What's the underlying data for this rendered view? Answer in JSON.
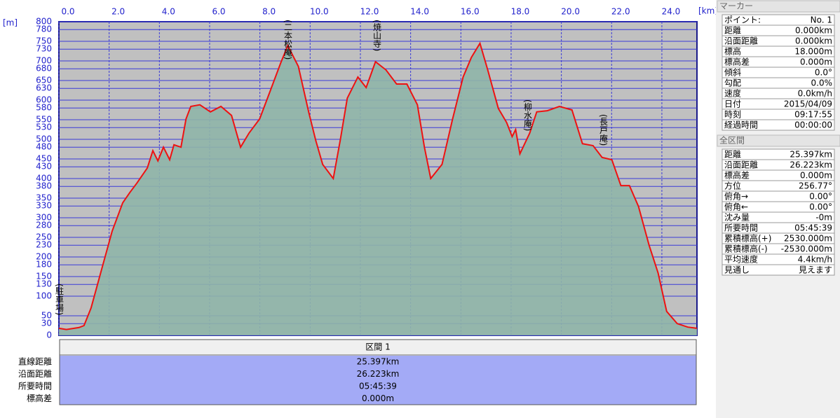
{
  "chart_data": {
    "type": "line",
    "x_label": "[km]",
    "y_label": "[m]",
    "color": "#ee1111",
    "fill": "#8fb5a8",
    "grid": true,
    "xlim": [
      0,
      25.397
    ],
    "ylim": [
      0,
      800
    ],
    "xticks": [
      {
        "value": 0,
        "label": "0.0"
      },
      {
        "value": 2,
        "label": "2.0"
      },
      {
        "value": 4,
        "label": "4.0"
      },
      {
        "value": 6,
        "label": "6.0"
      },
      {
        "value": 8,
        "label": "8.0"
      },
      {
        "value": 10,
        "label": "10.0"
      },
      {
        "value": 12,
        "label": "12.0"
      },
      {
        "value": 14,
        "label": "14.0"
      },
      {
        "value": 16,
        "label": "16.0"
      },
      {
        "value": 18,
        "label": "18.0"
      },
      {
        "value": 20,
        "label": "20.0"
      },
      {
        "value": 22,
        "label": "22.0"
      },
      {
        "value": 24,
        "label": "24.0"
      }
    ],
    "yticks": [
      0,
      30,
      50,
      100,
      130,
      150,
      180,
      200,
      230,
      250,
      280,
      300,
      330,
      350,
      380,
      400,
      430,
      450,
      480,
      500,
      530,
      550,
      580,
      600,
      630,
      650,
      680,
      700,
      730,
      750,
      780,
      800
    ],
    "annotations": [
      "(駐車場)",
      "(二本松庵)",
      "(焼山寺)",
      "(柳水庵)",
      "(長戸庵)"
    ],
    "x": [
      0,
      0.3,
      0.8,
      1.0,
      1.28,
      1.7,
      2.12,
      2.54,
      2.82,
      3.1,
      3.52,
      3.74,
      3.94,
      4.16,
      4.41,
      4.58,
      4.86,
      5.06,
      5.25,
      5.61,
      6.03,
      6.45,
      6.87,
      7.23,
      7.57,
      7.99,
      8.41,
      8.83,
      9.11,
      9.53,
      9.94,
      10.22,
      10.5,
      10.92,
      11.2,
      11.48,
      11.9,
      12.23,
      12.6,
      13.02,
      13.44,
      13.85,
      14.27,
      14.55,
      14.8,
      15.25,
      15.67,
      16.09,
      16.42,
      16.76,
      17.07,
      17.49,
      17.82,
      18.04,
      18.18,
      18.35,
      18.74,
      19.02,
      19.44,
      19.92,
      20.42,
      20.84,
      21.26,
      21.62,
      22.01,
      22.37,
      22.71,
      23.07,
      23.49,
      23.85,
      24.19,
      24.61,
      25.03,
      25.397
    ],
    "values": [
      18,
      15,
      20,
      25,
      70,
      168,
      266,
      338,
      364,
      388,
      427,
      471,
      445,
      480,
      448,
      486,
      480,
      552,
      584,
      588,
      570,
      584,
      561,
      480,
      516,
      552,
      623,
      695,
      739,
      686,
      570,
      498,
      436,
      400,
      498,
      605,
      659,
      632,
      698,
      677,
      641,
      641,
      588,
      480,
      400,
      436,
      552,
      659,
      709,
      745,
      677,
      579,
      543,
      507,
      525,
      463,
      516,
      570,
      573,
      584,
      575,
      489,
      484,
      454,
      448,
      382,
      382,
      329,
      230,
      159,
      61,
      30,
      21,
      18
    ]
  },
  "section_table": {
    "header": "区間 1",
    "rows": [
      [
        "直線距離",
        "25.397km"
      ],
      [
        "沿面距離",
        "26.223km"
      ],
      [
        "所要時間",
        "05:45:39"
      ],
      [
        "標高差",
        "0.000m"
      ]
    ]
  },
  "marker_panel": {
    "title": "マーカー",
    "rows": [
      [
        "ポイント:",
        "No. 1"
      ],
      [
        "距離",
        "0.000km"
      ],
      [
        "沿面距離",
        "0.000km"
      ],
      [
        "標高",
        "18.000m"
      ],
      [
        "標高差",
        "0.000m"
      ],
      [
        "傾斜",
        "0.0°"
      ],
      [
        "勾配",
        "0.0%"
      ],
      [
        "速度",
        "0.0km/h"
      ],
      [
        "日付",
        "2015/04/09"
      ],
      [
        "時刻",
        "09:17:55"
      ],
      [
        "経過時間",
        "00:00:00"
      ]
    ]
  },
  "total_panel": {
    "title": "全区間",
    "rows": [
      [
        "距離",
        "25.397km"
      ],
      [
        "沿面距離",
        "26.223km"
      ],
      [
        "標高差",
        "0.000m"
      ],
      [
        "方位",
        "256.77°"
      ],
      [
        "俯角→",
        "0.00°"
      ],
      [
        "俯角←",
        "0.00°"
      ],
      [
        "沈み量",
        "-0m"
      ],
      [
        "所要時間",
        "05:45:39"
      ],
      [
        "累積標高(+)",
        "2530.000m"
      ],
      [
        "累積標高(-)",
        "-2530.000m"
      ],
      [
        "平均速度",
        "4.4km/h"
      ],
      [
        "見通し",
        "見えます"
      ]
    ]
  }
}
